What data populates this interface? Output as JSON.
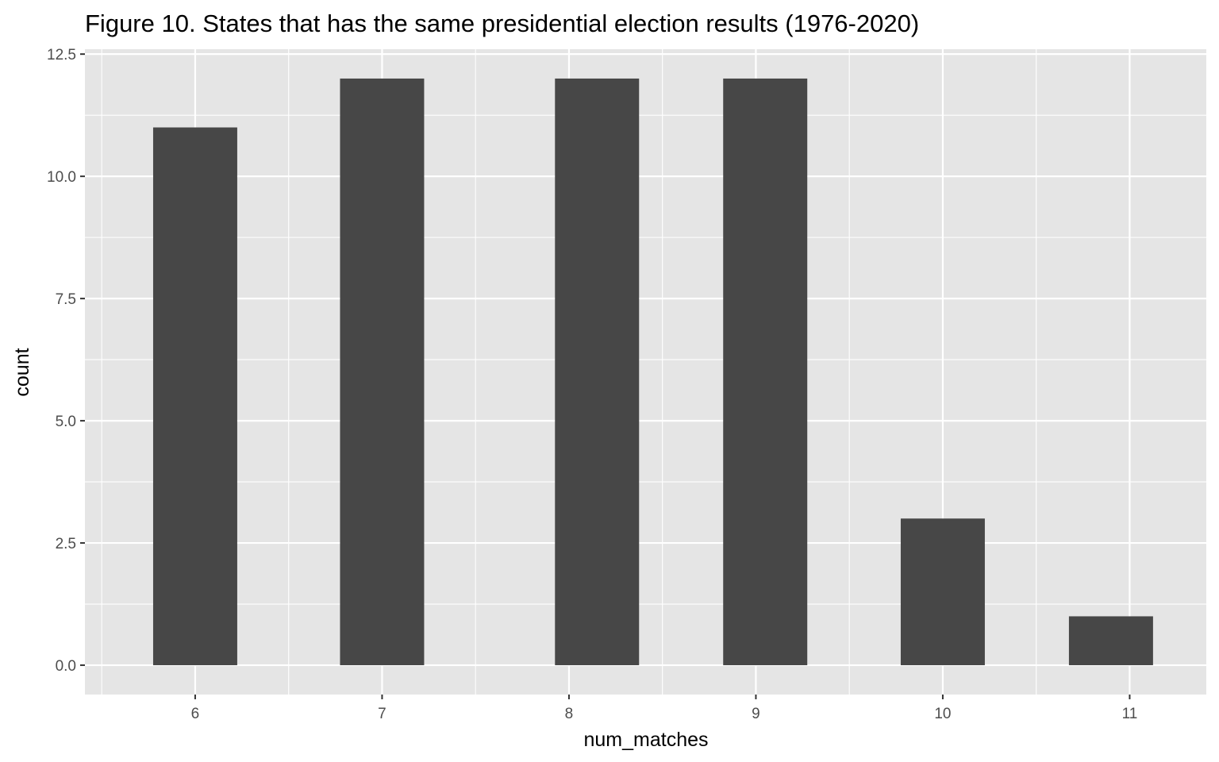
{
  "chart_data": {
    "type": "bar",
    "title": "Figure 10. States that has the same presidential election results (1976-2020)",
    "xlabel": "num_matches",
    "ylabel": "count",
    "x": [
      6,
      7,
      8,
      9,
      10,
      11
    ],
    "x_tick_labels": [
      "6",
      "7",
      "8",
      "9",
      "10",
      "11"
    ],
    "categories": [
      6,
      7,
      8.15,
      9.05,
      10,
      10.9
    ],
    "values": [
      11,
      12,
      12,
      12,
      3,
      1
    ],
    "bar_width": 0.45,
    "xlim": [
      5.41,
      11.41
    ],
    "ylim": [
      -0.6,
      12.6
    ],
    "y_ticks": [
      0,
      2.5,
      5,
      7.5,
      10,
      12.5
    ],
    "y_tick_labels": [
      "0.0",
      "2.5",
      "5.0",
      "7.5",
      "10.0",
      "12.5"
    ],
    "grid": true,
    "colors": {
      "panel": "#e5e5e5",
      "grid": "#ffffff",
      "bar": "#474747",
      "tick": "#333333"
    }
  }
}
